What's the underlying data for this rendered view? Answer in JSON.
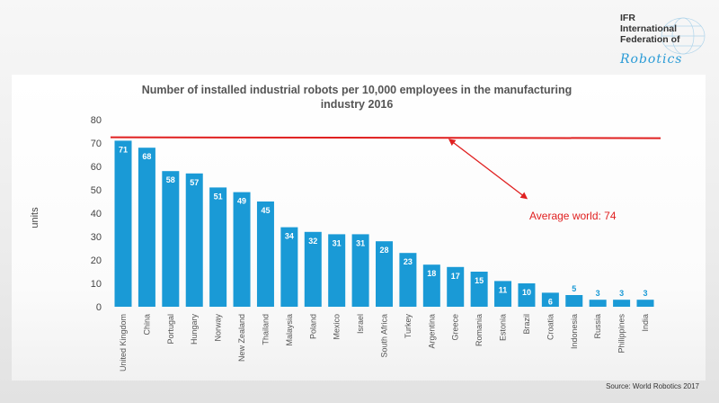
{
  "logo": {
    "line1": "IFR",
    "line2": "International",
    "line3": "Federation of",
    "line4": "Robotics"
  },
  "source": "Source: World Robotics 2017",
  "chart_data": {
    "type": "bar",
    "title": "Number of installed industrial robots per 10,000 employees in the manufacturing industry 2016",
    "title_lines": [
      "Number of installed industrial robots per 10,000 employees in the manufacturing",
      "industry 2016"
    ],
    "xlabel": "",
    "ylabel": "units",
    "ylim": [
      0,
      80
    ],
    "yticks": [
      0,
      10,
      20,
      30,
      40,
      50,
      60,
      70,
      80
    ],
    "grid": false,
    "categories": [
      "United Kingdom",
      "China",
      "Portugal",
      "Hungary",
      "Norway",
      "New Zealand",
      "Thailand",
      "Malaysia",
      "Poland",
      "Mexico",
      "Israel",
      "South Africa",
      "Turkey",
      "Argentina",
      "Greece",
      "Romania",
      "Estonia",
      "Brazil",
      "Croatia",
      "Indonesia",
      "Russia",
      "Philippines",
      "India"
    ],
    "values": [
      71,
      68,
      58,
      57,
      51,
      49,
      45,
      34,
      32,
      31,
      31,
      28,
      23,
      18,
      17,
      15,
      11,
      10,
      6,
      5,
      3,
      3,
      3
    ],
    "bar_color": "#1a9ad6",
    "reference_line": {
      "value": 74,
      "label": "Average world: 74",
      "color": "#e02020"
    }
  }
}
